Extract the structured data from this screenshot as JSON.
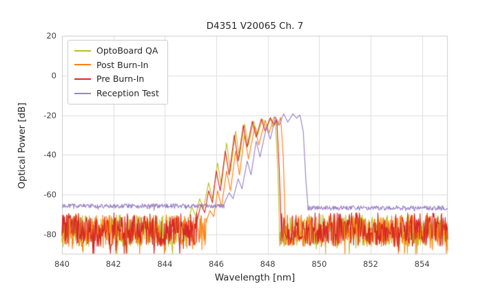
{
  "chart_data": {
    "type": "line",
    "title": "D4351 V20065 Ch. 7",
    "xlabel": "Wavelength [nm]",
    "ylabel": "Optical Power [dB]",
    "xlim": [
      840,
      855
    ],
    "ylim": [
      -90,
      20
    ],
    "xticks": [
      840,
      842,
      844,
      846,
      848,
      850,
      852,
      854
    ],
    "yticks": [
      20,
      0,
      -20,
      -40,
      -60,
      -80
    ],
    "grid": true,
    "grid_color": "#dcdcdc",
    "border_color": "#cccccc",
    "legend_position": "upper left",
    "series": [
      {
        "name": "OptoBoard QA",
        "color": "#bcbd22",
        "signal": [
          [
            844.9,
            -74
          ],
          [
            845.05,
            -66
          ],
          [
            845.2,
            -71
          ],
          [
            845.35,
            -62
          ],
          [
            845.5,
            -67
          ],
          [
            845.7,
            -54
          ],
          [
            845.85,
            -62
          ],
          [
            846.05,
            -44
          ],
          [
            846.2,
            -55
          ],
          [
            846.4,
            -34
          ],
          [
            846.55,
            -48
          ],
          [
            846.75,
            -28
          ],
          [
            846.9,
            -41
          ],
          [
            847.1,
            -24.5
          ],
          [
            847.25,
            -35
          ],
          [
            847.45,
            -23
          ],
          [
            847.6,
            -30
          ],
          [
            847.8,
            -22
          ],
          [
            847.95,
            -27
          ],
          [
            848.1,
            -21.5
          ],
          [
            848.2,
            -26
          ],
          [
            848.3,
            -23
          ],
          [
            848.4,
            -50
          ],
          [
            848.45,
            -74
          ]
        ],
        "noise_regions": [
          {
            "x0": 840,
            "x1": 844.9,
            "mean": -78,
            "amp": 8
          },
          {
            "x0": 848.45,
            "x1": 855,
            "mean": -78,
            "amp": 8
          }
        ]
      },
      {
        "name": "Post Burn-In",
        "color": "#ff7f0e",
        "signal": [
          [
            845.6,
            -74
          ],
          [
            845.75,
            -68
          ],
          [
            845.9,
            -71
          ],
          [
            846.05,
            -58
          ],
          [
            846.2,
            -66
          ],
          [
            846.4,
            -48
          ],
          [
            846.55,
            -58
          ],
          [
            846.75,
            -38
          ],
          [
            846.9,
            -50
          ],
          [
            847.1,
            -30
          ],
          [
            847.25,
            -42
          ],
          [
            847.5,
            -25.5
          ],
          [
            847.65,
            -35
          ],
          [
            847.9,
            -22.5
          ],
          [
            848.05,
            -29
          ],
          [
            848.25,
            -20.8
          ],
          [
            848.4,
            -25
          ],
          [
            848.5,
            -21
          ],
          [
            848.6,
            -40
          ],
          [
            848.68,
            -74
          ]
        ],
        "noise_regions": [
          {
            "x0": 840,
            "x1": 845.6,
            "mean": -78,
            "amp": 8
          },
          {
            "x0": 848.68,
            "x1": 855,
            "mean": -78,
            "amp": 8
          }
        ]
      },
      {
        "name": "Pre Burn-In",
        "color": "#d62728",
        "signal": [
          [
            845.25,
            -73
          ],
          [
            845.4,
            -65
          ],
          [
            845.55,
            -69
          ],
          [
            845.7,
            -58
          ],
          [
            845.85,
            -64
          ],
          [
            846.0,
            -48
          ],
          [
            846.15,
            -58
          ],
          [
            846.35,
            -38
          ],
          [
            846.5,
            -50
          ],
          [
            846.7,
            -30
          ],
          [
            846.85,
            -43
          ],
          [
            847.05,
            -25
          ],
          [
            847.2,
            -36
          ],
          [
            847.4,
            -23
          ],
          [
            847.55,
            -31
          ],
          [
            847.75,
            -21.8
          ],
          [
            847.9,
            -28
          ],
          [
            848.1,
            -21.2
          ],
          [
            848.25,
            -25
          ],
          [
            848.35,
            -22
          ],
          [
            848.45,
            -48
          ],
          [
            848.52,
            -76
          ]
        ],
        "noise_regions": [
          {
            "x0": 840,
            "x1": 845.25,
            "mean": -77.5,
            "amp": 8.5
          },
          {
            "x0": 848.52,
            "x1": 855,
            "mean": -77.5,
            "amp": 8.5
          }
        ]
      },
      {
        "name": "Reception Test",
        "color": "#9b82c6",
        "signal": [
          [
            846.3,
            -64.5
          ],
          [
            846.5,
            -59
          ],
          [
            846.65,
            -62
          ],
          [
            846.85,
            -52
          ],
          [
            847.0,
            -57
          ],
          [
            847.2,
            -43
          ],
          [
            847.35,
            -50
          ],
          [
            847.55,
            -33
          ],
          [
            847.7,
            -41
          ],
          [
            847.95,
            -26
          ],
          [
            848.1,
            -32
          ],
          [
            848.3,
            -20.8
          ],
          [
            848.45,
            -25
          ],
          [
            848.62,
            -19.3
          ],
          [
            848.78,
            -23.5
          ],
          [
            848.98,
            -19.3
          ],
          [
            849.12,
            -21.5
          ],
          [
            849.25,
            -19.8
          ],
          [
            849.38,
            -28
          ],
          [
            849.48,
            -52
          ],
          [
            849.56,
            -65.5
          ]
        ],
        "noise_regions": [
          {
            "x0": 840,
            "x1": 846.3,
            "mean": -65.6,
            "amp": 1.1
          },
          {
            "x0": 849.56,
            "x1": 855,
            "mean": -66.6,
            "amp": 1.1
          }
        ]
      }
    ]
  }
}
